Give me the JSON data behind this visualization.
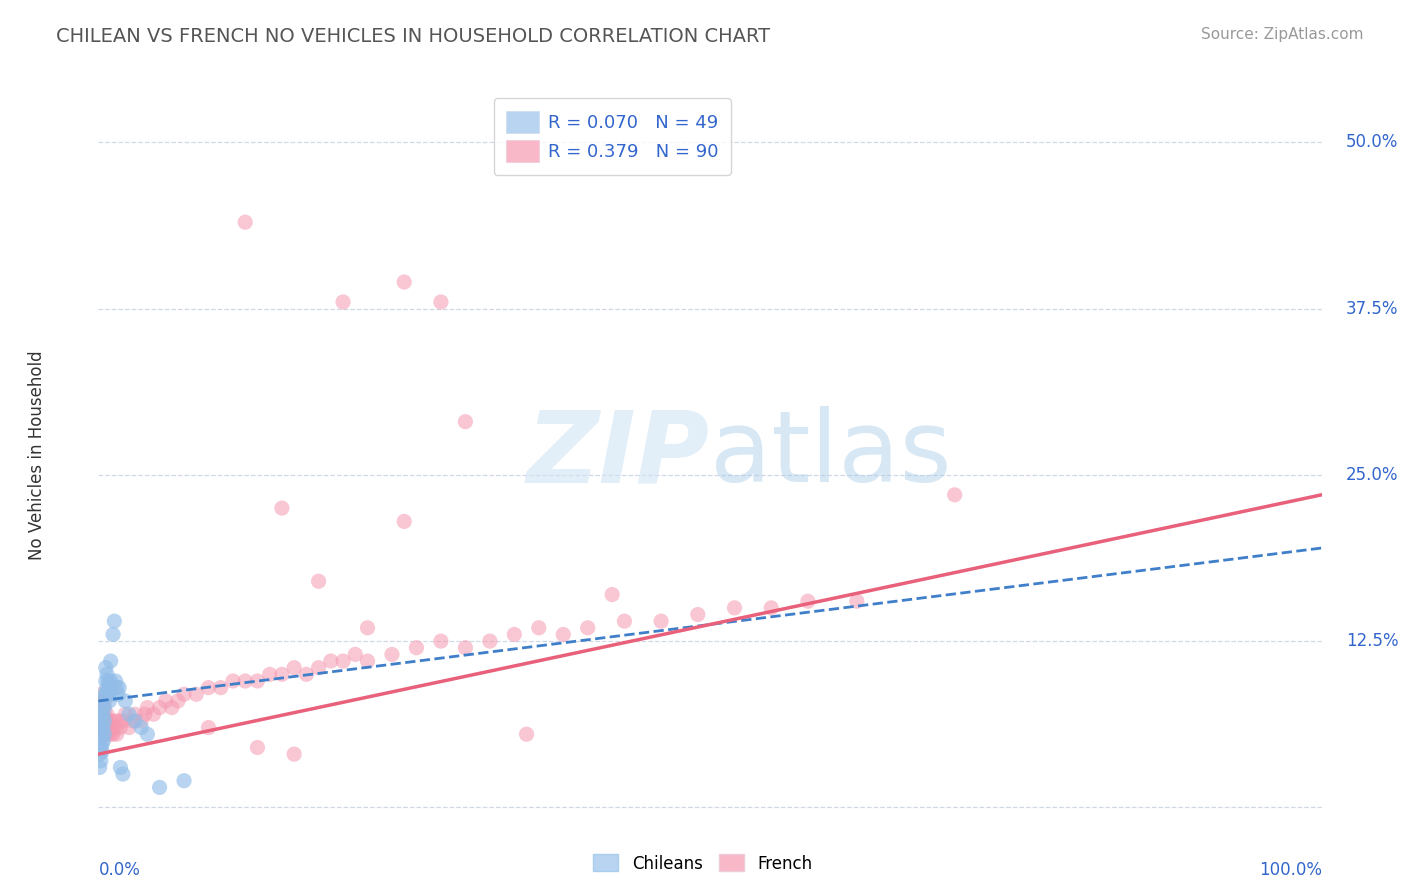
{
  "title": "CHILEAN VS FRENCH NO VEHICLES IN HOUSEHOLD CORRELATION CHART",
  "source": "Source: ZipAtlas.com",
  "ylabel": "No Vehicles in Household",
  "xlim": [
    0.0,
    1.0
  ],
  "ylim": [
    -0.01,
    0.54
  ],
  "yticks": [
    0.0,
    0.125,
    0.25,
    0.375,
    0.5
  ],
  "ytick_labels": [
    "",
    "12.5%",
    "25.0%",
    "37.5%",
    "50.0%"
  ],
  "xticks": [
    0.0,
    0.1,
    0.2,
    0.3,
    0.4,
    0.5,
    0.6,
    0.7,
    0.8,
    0.9,
    1.0
  ],
  "legend_r1": "R = 0.070",
  "legend_n1": "N = 49",
  "legend_r2": "R = 0.379",
  "legend_n2": "N = 90",
  "chilean_color": "#92bde8",
  "french_color": "#f599b0",
  "chilean_line_color": "#3f7ec8",
  "french_line_color": "#e8607a",
  "legend_box1": "#b8d4f0",
  "legend_box2": "#f8b8c8",
  "grid_color": "#d0d8e8",
  "background_color": "#ffffff",
  "text_color": "#3366cc",
  "title_color": "#555555",
  "source_color": "#999999",
  "ylabel_color": "#333333",
  "chilean_R": 0.07,
  "french_R": 0.379,
  "chilean_line_x0": 0.0,
  "chilean_line_x1": 1.0,
  "chilean_line_y0": 0.08,
  "chilean_line_y1": 0.195,
  "french_line_x0": 0.0,
  "french_line_x1": 1.0,
  "french_line_y0": 0.04,
  "french_line_y1": 0.235,
  "chilean_x": [
    0.001,
    0.001,
    0.001,
    0.001,
    0.002,
    0.002,
    0.002,
    0.002,
    0.002,
    0.003,
    0.003,
    0.003,
    0.003,
    0.003,
    0.004,
    0.004,
    0.004,
    0.004,
    0.005,
    0.005,
    0.005,
    0.005,
    0.006,
    0.006,
    0.006,
    0.007,
    0.007,
    0.008,
    0.008,
    0.009,
    0.009,
    0.01,
    0.01,
    0.011,
    0.012,
    0.013,
    0.014,
    0.015,
    0.016,
    0.017,
    0.018,
    0.02,
    0.022,
    0.025,
    0.03,
    0.035,
    0.04,
    0.05,
    0.07
  ],
  "chilean_y": [
    0.05,
    0.06,
    0.04,
    0.03,
    0.055,
    0.045,
    0.035,
    0.07,
    0.06,
    0.048,
    0.055,
    0.065,
    0.042,
    0.075,
    0.05,
    0.06,
    0.08,
    0.07,
    0.055,
    0.065,
    0.075,
    0.085,
    0.095,
    0.085,
    0.105,
    0.09,
    0.1,
    0.085,
    0.095,
    0.08,
    0.09,
    0.095,
    0.11,
    0.085,
    0.13,
    0.14,
    0.095,
    0.09,
    0.085,
    0.09,
    0.03,
    0.025,
    0.08,
    0.07,
    0.065,
    0.06,
    0.055,
    0.015,
    0.02
  ],
  "french_x": [
    0.001,
    0.001,
    0.002,
    0.002,
    0.002,
    0.003,
    0.003,
    0.003,
    0.004,
    0.004,
    0.004,
    0.005,
    0.005,
    0.005,
    0.006,
    0.006,
    0.007,
    0.007,
    0.008,
    0.008,
    0.009,
    0.01,
    0.01,
    0.011,
    0.012,
    0.013,
    0.014,
    0.015,
    0.016,
    0.018,
    0.02,
    0.022,
    0.025,
    0.028,
    0.03,
    0.035,
    0.038,
    0.04,
    0.045,
    0.05,
    0.055,
    0.06,
    0.065,
    0.07,
    0.08,
    0.09,
    0.1,
    0.11,
    0.12,
    0.13,
    0.14,
    0.15,
    0.16,
    0.17,
    0.18,
    0.19,
    0.2,
    0.21,
    0.22,
    0.24,
    0.26,
    0.28,
    0.3,
    0.32,
    0.34,
    0.36,
    0.38,
    0.4,
    0.43,
    0.46,
    0.49,
    0.52,
    0.55,
    0.58,
    0.62,
    0.35,
    0.25,
    0.3,
    0.28,
    0.42,
    0.15,
    0.2,
    0.25,
    0.12,
    0.18,
    0.22,
    0.09,
    0.13,
    0.16,
    0.7
  ],
  "french_y": [
    0.07,
    0.08,
    0.065,
    0.075,
    0.085,
    0.06,
    0.07,
    0.08,
    0.055,
    0.065,
    0.075,
    0.06,
    0.07,
    0.08,
    0.055,
    0.065,
    0.06,
    0.07,
    0.055,
    0.065,
    0.06,
    0.055,
    0.065,
    0.06,
    0.055,
    0.065,
    0.06,
    0.055,
    0.065,
    0.06,
    0.065,
    0.07,
    0.06,
    0.065,
    0.07,
    0.065,
    0.07,
    0.075,
    0.07,
    0.075,
    0.08,
    0.075,
    0.08,
    0.085,
    0.085,
    0.09,
    0.09,
    0.095,
    0.095,
    0.095,
    0.1,
    0.1,
    0.105,
    0.1,
    0.105,
    0.11,
    0.11,
    0.115,
    0.11,
    0.115,
    0.12,
    0.125,
    0.12,
    0.125,
    0.13,
    0.135,
    0.13,
    0.135,
    0.14,
    0.14,
    0.145,
    0.15,
    0.15,
    0.155,
    0.155,
    0.055,
    0.215,
    0.29,
    0.38,
    0.16,
    0.225,
    0.38,
    0.395,
    0.44,
    0.17,
    0.135,
    0.06,
    0.045,
    0.04,
    0.235
  ]
}
